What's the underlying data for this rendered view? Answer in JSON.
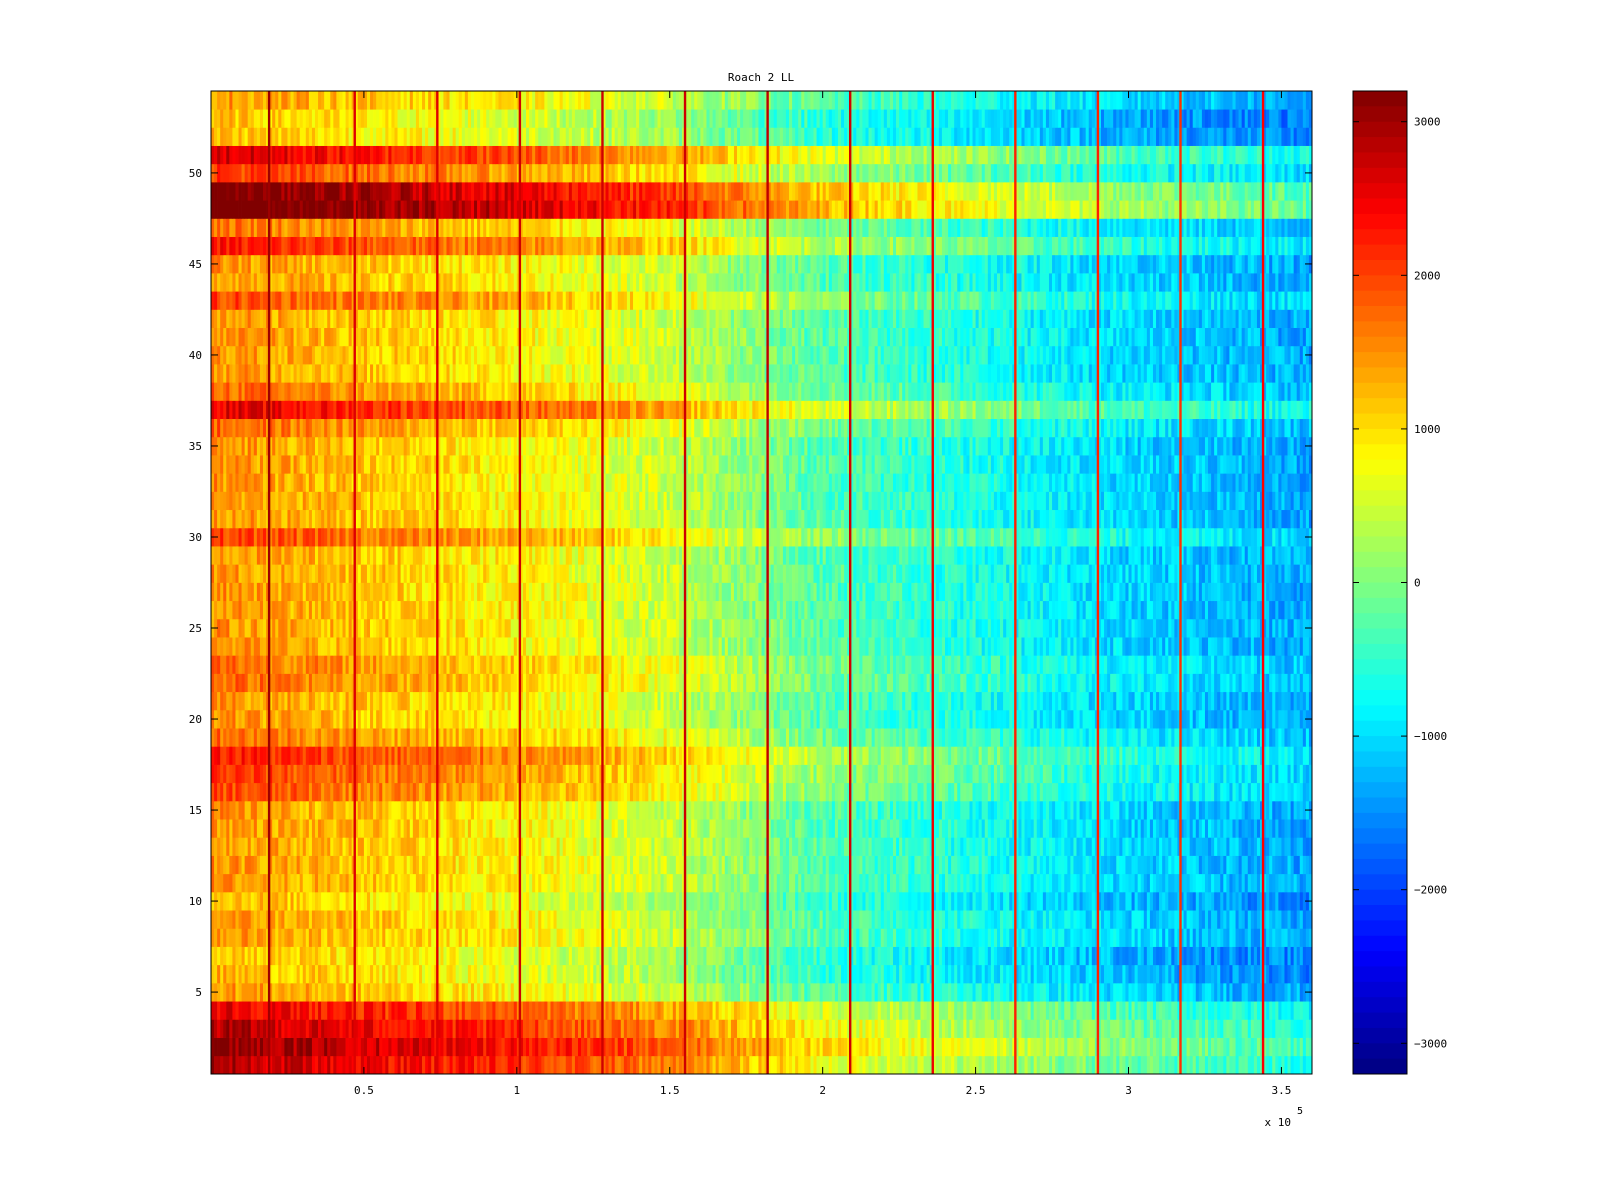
{
  "chart_data": {
    "type": "heatmap",
    "title": "Roach 2 LL",
    "xlabel": "",
    "ylabel": "",
    "colormap": "jet",
    "x_range": [
      0,
      360000
    ],
    "y_range": [
      0.5,
      54.5
    ],
    "n_rows": 54,
    "x_tick_values": [
      0.5,
      1,
      1.5,
      2,
      2.5,
      3,
      3.5
    ],
    "x_tick_labels": [
      "0.5",
      "1",
      "1.5",
      "2",
      "2.5",
      "3",
      "3.5"
    ],
    "x_exponent_prefix": "x 10",
    "x_exponent_power": "5",
    "y_tick_values": [
      5,
      10,
      15,
      20,
      25,
      30,
      35,
      40,
      45,
      50
    ],
    "y_tick_labels": [
      "5",
      "10",
      "15",
      "20",
      "25",
      "30",
      "35",
      "40",
      "45",
      "50"
    ],
    "colorbar": {
      "range": [
        -3200,
        3200
      ],
      "tick_values": [
        3000,
        2000,
        1000,
        0,
        -1000,
        -2000,
        -3000
      ],
      "tick_labels": [
        "3000",
        "2000",
        "1000",
        "0",
        "−1000",
        "−2000",
        "−3000"
      ]
    },
    "trend": {
      "x": [
        0,
        50000,
        100000,
        150000,
        200000,
        250000,
        300000,
        360000
      ],
      "base_value": [
        1500,
        1150,
        850,
        450,
        -300,
        -650,
        -1050,
        -1350
      ]
    },
    "row_offsets": [
      {
        "row": 1,
        "offset": 1400
      },
      {
        "row": 2,
        "offset": 1700
      },
      {
        "row": 3,
        "offset": 1400
      },
      {
        "row": 4,
        "offset": 1100
      },
      {
        "row": 6,
        "offset": -200
      },
      {
        "row": 7,
        "offset": -250
      },
      {
        "row": 10,
        "offset": -200
      },
      {
        "row": 16,
        "offset": 500
      },
      {
        "row": 17,
        "offset": 600
      },
      {
        "row": 18,
        "offset": 800
      },
      {
        "row": 19,
        "offset": 300
      },
      {
        "row": 22,
        "offset": 300
      },
      {
        "row": 23,
        "offset": 300
      },
      {
        "row": 30,
        "offset": 550
      },
      {
        "row": 36,
        "offset": 300
      },
      {
        "row": 37,
        "offset": 1100
      },
      {
        "row": 38,
        "offset": 300
      },
      {
        "row": 43,
        "offset": 500
      },
      {
        "row": 46,
        "offset": 800
      },
      {
        "row": 47,
        "offset": 250
      },
      {
        "row": 48,
        "offset": 2100
      },
      {
        "row": 49,
        "offset": 1900
      },
      {
        "row": 50,
        "offset": 600
      },
      {
        "row": 51,
        "offset": 1200
      },
      {
        "row": 52,
        "offset": -250
      },
      {
        "row": 53,
        "offset": -300
      }
    ],
    "vertical_streaks": [
      {
        "x": 19000,
        "value": 3000
      },
      {
        "x": 47000,
        "value": 2600
      },
      {
        "x": 74000,
        "value": 2600
      },
      {
        "x": 101000,
        "value": 2700
      },
      {
        "x": 128000,
        "value": 2700
      },
      {
        "x": 155000,
        "value": 2700
      },
      {
        "x": 182000,
        "value": 2800
      },
      {
        "x": 209000,
        "value": 2700
      },
      {
        "x": 236000,
        "value": 2500
      },
      {
        "x": 263000,
        "value": 2200
      },
      {
        "x": 290000,
        "value": 2200
      },
      {
        "x": 317000,
        "value": 2100
      },
      {
        "x": 344000,
        "value": 2400
      }
    ]
  }
}
